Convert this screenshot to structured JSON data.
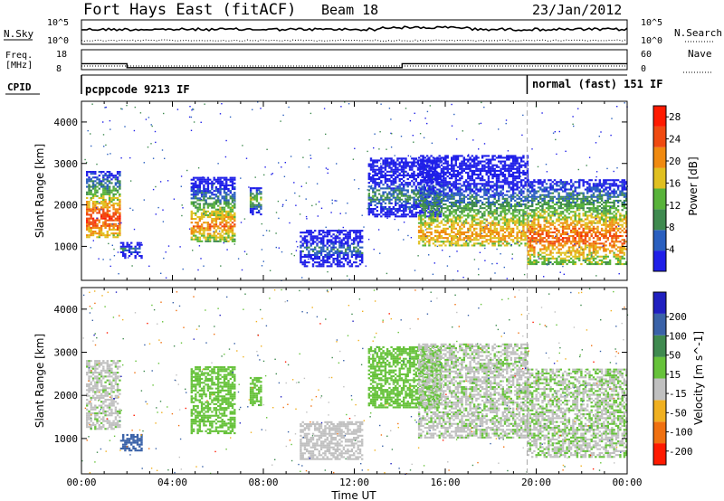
{
  "header": {
    "station": "Fort Hays East (fitACF)",
    "beam": "Beam 18",
    "date": "23/Jan/2012"
  },
  "noise_panel": {
    "left_label": "N.Sky",
    "left_ticks": [
      "10^5",
      "10^0"
    ],
    "right_label": "N.Search",
    "right_ticks": [
      "10^5",
      "10^0"
    ]
  },
  "freq_panel": {
    "left_label_line1": "Freq.",
    "left_label_line2": "[MHz]",
    "left_ticks": [
      "18",
      "8"
    ],
    "right_label": "Nave",
    "right_ticks": [
      "60",
      "0"
    ],
    "freq_steps": [
      {
        "t": 0,
        "v": 11.0
      },
      {
        "t": 2.0,
        "v": 9.0
      },
      {
        "t": 14.1,
        "v": 11.0
      },
      {
        "t": 24,
        "v": 11.0
      }
    ],
    "nave_level": 0.35
  },
  "cpid_panel": {
    "label": "CPID",
    "modes": [
      {
        "text": "pcppcode 9213 IF",
        "start": 0
      },
      {
        "text": "normal (fast) 151 IF",
        "start": 19.6
      }
    ]
  },
  "chart_data": {
    "type": "heatmap",
    "x_axis": {
      "label": "Time UT",
      "range_hours": [
        0,
        24
      ],
      "ticks": [
        "00:00",
        "04:00",
        "08:00",
        "12:00",
        "16:00",
        "20:00",
        "00:00"
      ]
    },
    "y_axis": {
      "label": "Slant Range [km]",
      "range_km": [
        180,
        4500
      ],
      "ticks": [
        "1000",
        "2000",
        "3000",
        "4000"
      ]
    },
    "mode_change_hour": 19.6,
    "panels": [
      {
        "name": "Power",
        "colorbar_label": "Power [dB]",
        "colorbar_ticks": [
          "4",
          "8",
          "12",
          "16",
          "20",
          "24",
          "28"
        ],
        "colorbar_range": [
          0,
          30
        ],
        "colors": [
          "#1f1fe8",
          "#2a5fbf",
          "#3f8a4f",
          "#58b33a",
          "#e0c020",
          "#f08a10",
          "#f04a10",
          "#ff1a00"
        ]
      },
      {
        "name": "Velocity",
        "colorbar_label": "Velocity [m s^-1]",
        "colorbar_ticks": [
          "200",
          "100",
          "50",
          "15",
          "-15",
          "-50",
          "-100",
          "-200"
        ],
        "colorbar_range": [
          -250,
          250
        ],
        "colors": [
          "#2020c0",
          "#3a62a8",
          "#3f8a4f",
          "#66c23a",
          "#c0c0c0",
          "#f0b020",
          "#f07010",
          "#ff1a00"
        ]
      }
    ],
    "echo_regions": [
      {
        "t0": 0.2,
        "t1": 1.7,
        "r0": 1200,
        "r1": 2800,
        "peak": 1650,
        "power": 26,
        "vel": -15
      },
      {
        "t0": 1.7,
        "t1": 2.6,
        "r0": 700,
        "r1": 1100,
        "peak": 900,
        "power": 8,
        "vel": 150
      },
      {
        "t0": 4.8,
        "t1": 6.7,
        "r0": 1100,
        "r1": 2650,
        "peak": 1500,
        "power": 22,
        "vel": 25
      },
      {
        "t0": 7.4,
        "t1": 7.9,
        "r0": 1750,
        "r1": 2400,
        "peak": 2100,
        "power": 16,
        "vel": 30
      },
      {
        "t0": 9.6,
        "t1": 12.3,
        "r0": 500,
        "r1": 1400,
        "peak": 900,
        "power": 8,
        "vel": -40
      },
      {
        "t0": 12.6,
        "t1": 15.8,
        "r0": 1700,
        "r1": 3100,
        "peak": 2200,
        "power": 10,
        "vel": 30
      },
      {
        "t0": 14.8,
        "t1": 19.6,
        "r0": 1000,
        "r1": 3200,
        "peak": 1300,
        "power": 20,
        "vel": -10
      },
      {
        "t0": 19.6,
        "t1": 24.0,
        "r0": 550,
        "r1": 2600,
        "peak": 1200,
        "power": 24,
        "vel": -5
      }
    ]
  }
}
